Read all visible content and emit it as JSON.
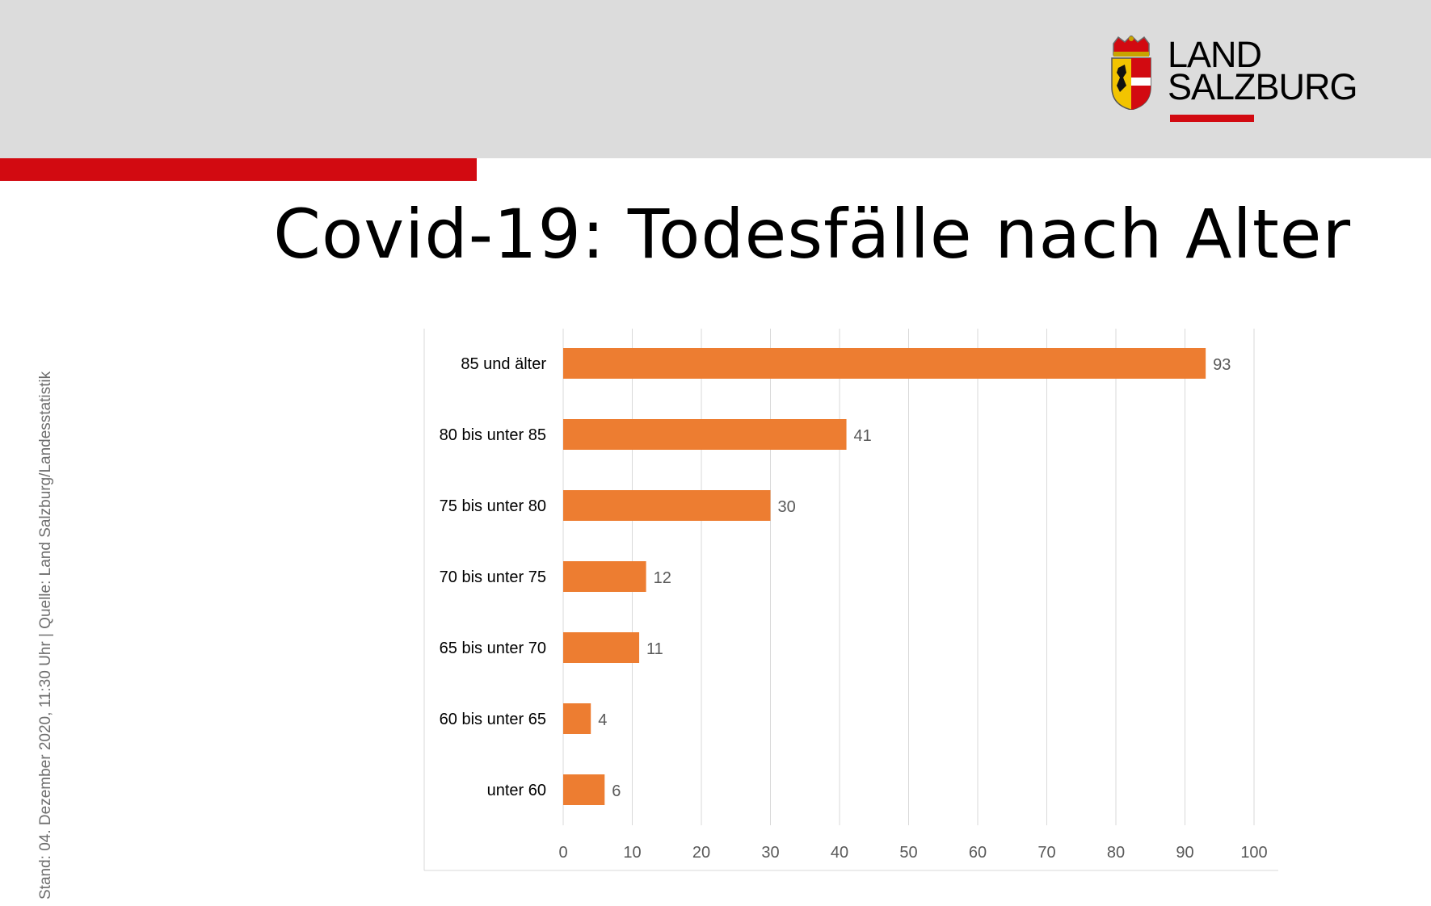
{
  "slide": {
    "title": "Covid-19: Todesfälle nach Alter",
    "source_note": "Stand: 04. Dezember 2020, 11:30 Uhr  |  Quelle: Land Salzburg/Landesstatistik"
  },
  "logo": {
    "line1": "LAND",
    "line2": "SALZBURG",
    "icon": "salzburg-coat-of-arms-icon"
  },
  "colors": {
    "header_gray": "#dcdcdc",
    "brand_red": "#d20a11",
    "bar_orange": "#ed7d31"
  },
  "chart_data": {
    "type": "bar",
    "orientation": "horizontal",
    "categories": [
      "85 und älter",
      "80 bis unter 85",
      "75 bis unter 80",
      "70 bis unter 75",
      "65 bis unter 70",
      "60 bis unter 65",
      "unter 60"
    ],
    "values": [
      93,
      41,
      30,
      12,
      11,
      4,
      6
    ],
    "xlim": [
      0,
      100
    ],
    "x_ticks": [
      0,
      10,
      20,
      30,
      40,
      50,
      60,
      70,
      80,
      90,
      100
    ],
    "grid": true,
    "data_labels": true,
    "legend": "none"
  }
}
